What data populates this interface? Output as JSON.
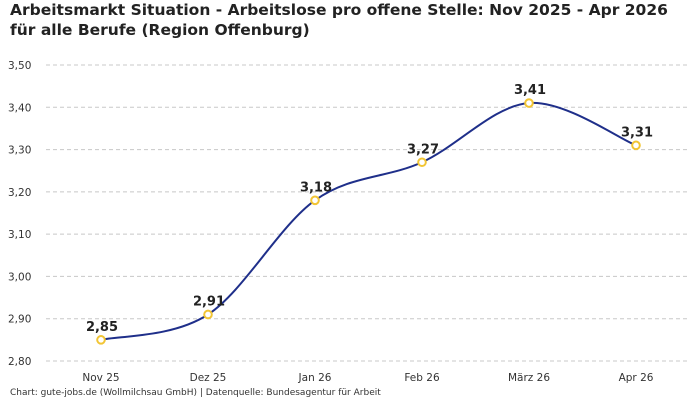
{
  "chart_data": {
    "type": "line",
    "title": "Arbeitsmarkt Situation - Arbeitslose pro offene Stelle: Nov 2025 - Apr 2026 für alle Berufe (Region Offenburg)",
    "categories": [
      "Nov 25",
      "Dez 25",
      "Jan 26",
      "Feb 26",
      "März 26",
      "Apr 26"
    ],
    "series": [
      {
        "values": [
          2.85,
          2.91,
          3.18,
          3.27,
          3.41,
          3.31
        ],
        "value_labels": [
          "2,85",
          "2,91",
          "3,18",
          "3,27",
          "3,41",
          "3,31"
        ]
      }
    ],
    "ylim": [
      2.8,
      3.5
    ],
    "y_ticks": [
      {
        "value": 2.8,
        "label": "2,80"
      },
      {
        "value": 2.9,
        "label": "2,90"
      },
      {
        "value": 3.0,
        "label": "3,00"
      },
      {
        "value": 3.1,
        "label": "3,10"
      },
      {
        "value": 3.2,
        "label": "3,20"
      },
      {
        "value": 3.3,
        "label": "3,30"
      },
      {
        "value": 3.4,
        "label": "3,40"
      },
      {
        "value": 3.5,
        "label": "3,50"
      }
    ],
    "xlabel": "",
    "ylabel": "",
    "grid": "horizontal dashed",
    "line_color": "#1f2f8a",
    "marker_color": "#f2c534"
  },
  "footer": {
    "source": "Chart: gute-jobs.de (Wollmilchsau GmbH) | Datenquelle: Bundesagentur für Arbeit"
  }
}
